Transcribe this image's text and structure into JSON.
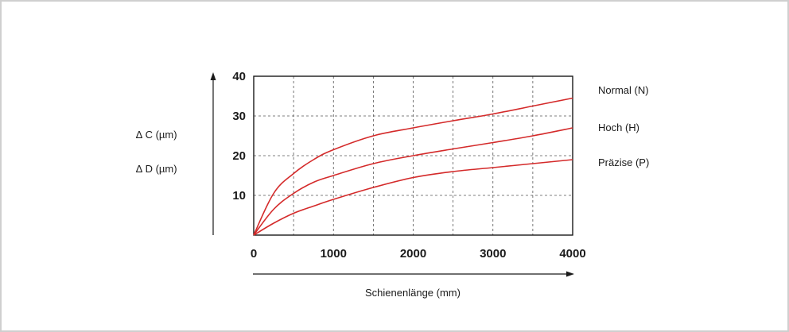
{
  "chart_data": {
    "type": "line",
    "xlabel": "Schienenlänge (mm)",
    "ylabel_lines": [
      "∆ C (µm)",
      "∆ D (µm)"
    ],
    "xlim": [
      0,
      4000
    ],
    "ylim": [
      0,
      40
    ],
    "grid": true,
    "x_ticks": [
      {
        "value": 0,
        "label": "0"
      },
      {
        "value": 1000,
        "label": "1000"
      },
      {
        "value": 2000,
        "label": "2000"
      },
      {
        "value": 3000,
        "label": "3000"
      },
      {
        "value": 4000,
        "label": "4000"
      }
    ],
    "y_ticks": [
      {
        "value": 10,
        "label": "10"
      },
      {
        "value": 20,
        "label": "20"
      },
      {
        "value": 30,
        "label": "30"
      },
      {
        "value": 40,
        "label": "40"
      }
    ],
    "x_gridlines": [
      500,
      1000,
      1500,
      2000,
      2500,
      3000,
      3500
    ],
    "y_gridlines": [
      10,
      20,
      30
    ],
    "x": [
      0,
      250,
      500,
      750,
      1000,
      1500,
      2000,
      2500,
      3000,
      3500,
      4000
    ],
    "series": [
      {
        "name": "Normal (N)",
        "color": "#d42a2a",
        "values": [
          0,
          10.5,
          15.5,
          19,
          21.5,
          25,
          27,
          28.8,
          30.5,
          32.5,
          34.5
        ]
      },
      {
        "name": "Hoch (H)",
        "color": "#d42a2a",
        "values": [
          0,
          6.5,
          10.5,
          13.3,
          15,
          18,
          20,
          21.7,
          23.3,
          25,
          27
        ]
      },
      {
        "name": "Präzise (P)",
        "color": "#d42a2a",
        "values": [
          0,
          3,
          5.5,
          7.3,
          9,
          12,
          14.5,
          16,
          17,
          18,
          19
        ]
      }
    ],
    "legend_position": "right"
  }
}
